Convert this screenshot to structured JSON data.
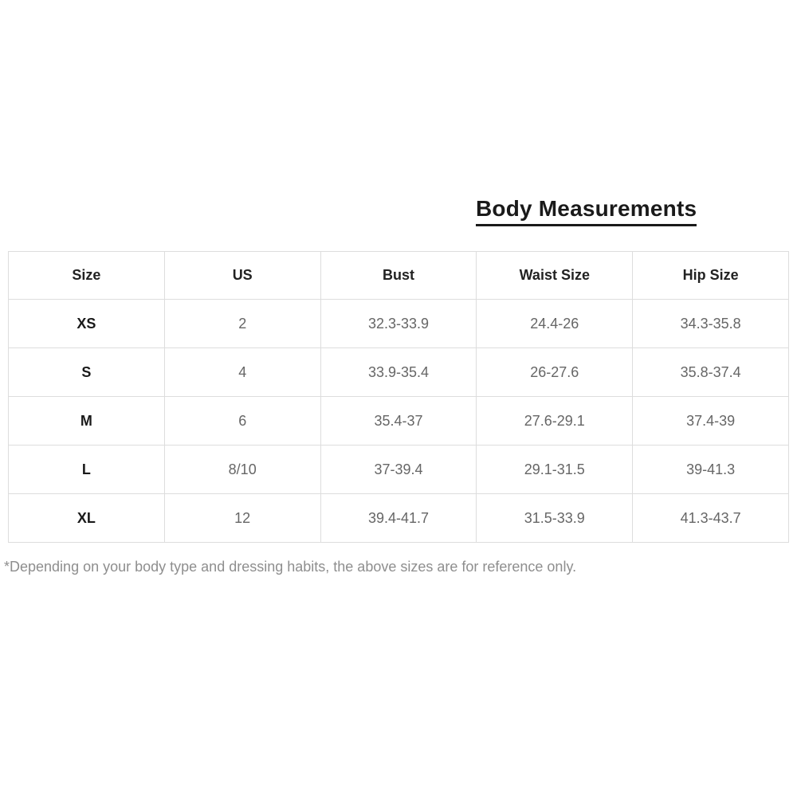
{
  "title": "Body Measurements",
  "table": {
    "columns": [
      "Size",
      "US",
      "Bust",
      "Waist Size",
      "Hip Size"
    ],
    "rows": [
      [
        "XS",
        "2",
        "32.3-33.9",
        "24.4-26",
        "34.3-35.8"
      ],
      [
        "S",
        "4",
        "33.9-35.4",
        "26-27.6",
        "35.8-37.4"
      ],
      [
        "M",
        "6",
        "35.4-37",
        "27.6-29.1",
        "37.4-39"
      ],
      [
        "L",
        "8/10",
        "37-39.4",
        "29.1-31.5",
        "39-41.3"
      ],
      [
        "XL",
        "12",
        "39.4-41.7",
        "31.5-33.9",
        "41.3-43.7"
      ]
    ]
  },
  "footnote": "*Depending on your body type and dressing habits, the above sizes are for reference only.",
  "colors": {
    "background": "#ffffff",
    "title_text": "#1a1a1a",
    "header_text": "#222222",
    "size_column_text": "#1a1a1a",
    "cell_text": "#666666",
    "border": "#dddddd",
    "footnote_text": "#8e8e8e"
  }
}
